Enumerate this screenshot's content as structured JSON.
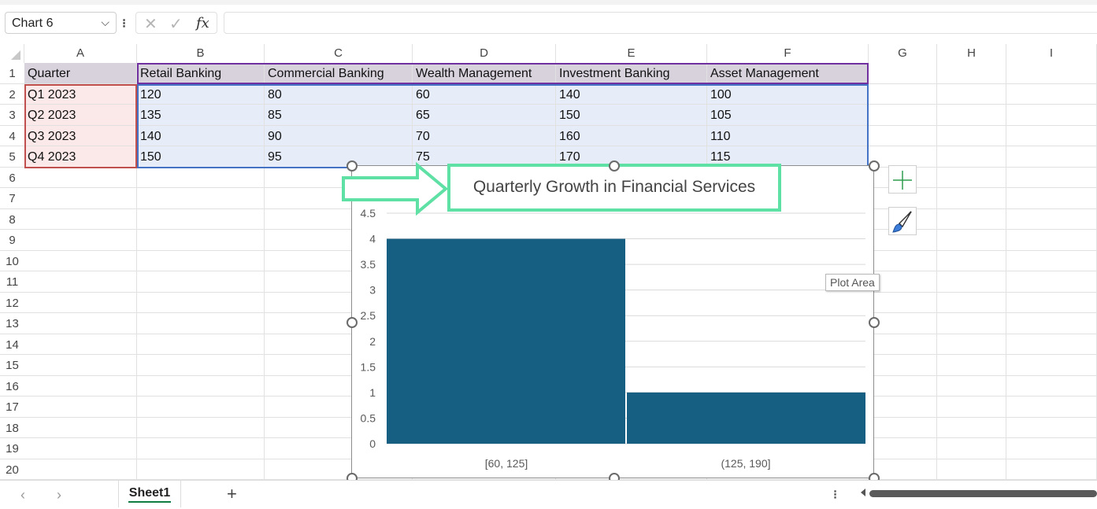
{
  "formula_bar": {
    "name_box": "Chart 6",
    "cancel_symbol": "✕",
    "enter_symbol": "✓",
    "fx_label": "fx",
    "formula": ""
  },
  "columns": [
    "A",
    "B",
    "C",
    "D",
    "E",
    "F",
    "G",
    "H",
    "I"
  ],
  "rows": [
    "1",
    "2",
    "3",
    "4",
    "5",
    "6",
    "7",
    "8",
    "9",
    "10",
    "11",
    "12",
    "13",
    "14",
    "15",
    "16",
    "17",
    "18",
    "19",
    "20"
  ],
  "table": {
    "headers": [
      "Quarter",
      "Retail Banking",
      "Commercial Banking",
      "Wealth Management",
      "Investment Banking",
      "Asset Management"
    ],
    "data": [
      [
        "Q1 2023",
        "120",
        "80",
        "60",
        "140",
        "100"
      ],
      [
        "Q2 2023",
        "135",
        "85",
        "65",
        "150",
        "105"
      ],
      [
        "Q3 2023",
        "140",
        "90",
        "70",
        "160",
        "110"
      ],
      [
        "Q4 2023",
        "150",
        "95",
        "75",
        "170",
        "115"
      ]
    ]
  },
  "chart_data": {
    "type": "bar",
    "title": "Quarterly Growth in Financial Services",
    "categories": [
      "[60, 125]",
      "(125, 190]"
    ],
    "values": [
      4,
      1
    ],
    "ylim": [
      0,
      4.5
    ],
    "yticks": [
      "0",
      "0.5",
      "1",
      "1.5",
      "2",
      "2.5",
      "3",
      "3.5",
      "4",
      "4.5"
    ],
    "grid": true,
    "bar_color": "#175f82",
    "xlabel": "",
    "ylabel": ""
  },
  "chart_ui": {
    "tooltip": "Plot Area",
    "add_element_icon": "plus-icon",
    "style_icon": "paintbrush-icon"
  },
  "sheets": {
    "active": "Sheet1",
    "add_symbol": "+"
  },
  "colors": {
    "header_fill": "#d8d2dd",
    "quarter_fill": "#fbe8e8",
    "data_fill": "#e6ecf8",
    "highlight": "#5fe0a4",
    "accent_green": "#107c41"
  }
}
